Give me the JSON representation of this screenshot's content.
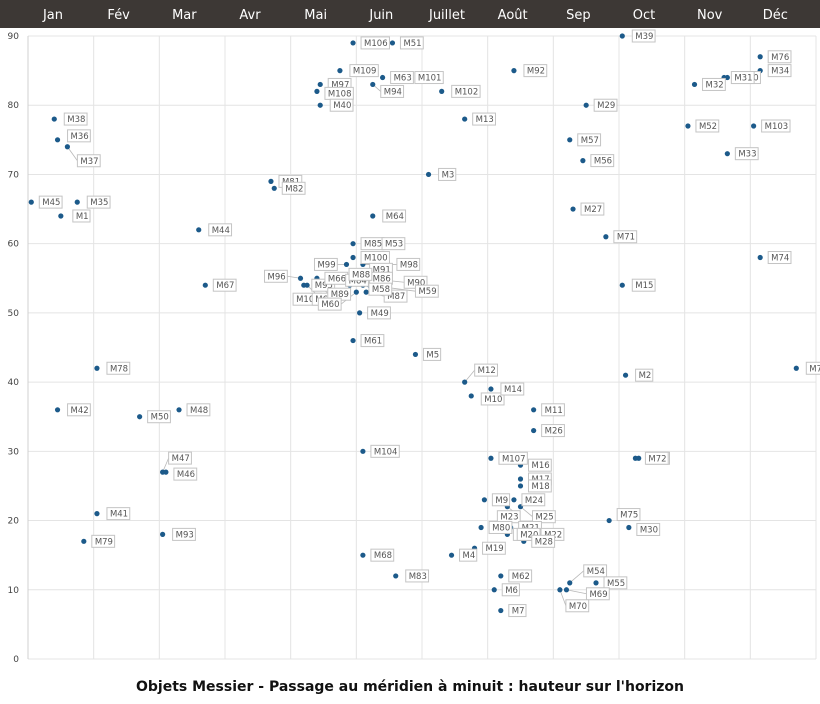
{
  "chart_data": {
    "type": "scatter",
    "title": "Objets Messier - Passage au méridien à minuit : hauteur sur l'horizon",
    "months": [
      "Jan",
      "Fév",
      "Mar",
      "Avr",
      "Mai",
      "Juin",
      "Juillet",
      "Août",
      "Sep",
      "Oct",
      "Nov",
      "Déc"
    ],
    "ylim": [
      0,
      90
    ],
    "yticks": [
      0,
      10,
      20,
      30,
      40,
      50,
      60,
      70,
      80,
      90
    ],
    "grid": true,
    "header_color": "#3d3835",
    "point_color": "#1c5a8a",
    "points": [
      {
        "name": "M1",
        "x": 0.5,
        "y": 64,
        "lx": 12,
        "ly": 0
      },
      {
        "name": "M35",
        "x": 0.75,
        "y": 66,
        "lx": 10,
        "ly": 0
      },
      {
        "name": "M45",
        "x": 0.05,
        "y": 66,
        "lx": 8,
        "ly": 0
      },
      {
        "name": "M38",
        "x": 0.4,
        "y": 78,
        "lx": 10,
        "ly": 0
      },
      {
        "name": "M36",
        "x": 0.45,
        "y": 75,
        "lx": 10,
        "ly": -4
      },
      {
        "name": "M37",
        "x": 0.6,
        "y": 74,
        "lx": 10,
        "ly": 14
      },
      {
        "name": "M42",
        "x": 0.45,
        "y": 36,
        "lx": 10,
        "ly": 0
      },
      {
        "name": "M78",
        "x": 1.05,
        "y": 42,
        "lx": 10,
        "ly": 0
      },
      {
        "name": "M79",
        "x": 0.85,
        "y": 17,
        "lx": 8,
        "ly": 0
      },
      {
        "name": "M41",
        "x": 1.05,
        "y": 21,
        "lx": 10,
        "ly": 0
      },
      {
        "name": "M50",
        "x": 1.7,
        "y": 35,
        "lx": 8,
        "ly": 0
      },
      {
        "name": "M48",
        "x": 2.3,
        "y": 36,
        "lx": 8,
        "ly": 0
      },
      {
        "name": "M47",
        "x": 2.05,
        "y": 27,
        "lx": 6,
        "ly": -14
      },
      {
        "name": "M46",
        "x": 2.1,
        "y": 27,
        "lx": 8,
        "ly": 2
      },
      {
        "name": "M93",
        "x": 2.05,
        "y": 18,
        "lx": 10,
        "ly": 0
      },
      {
        "name": "M44",
        "x": 2.6,
        "y": 62,
        "lx": 10,
        "ly": 0
      },
      {
        "name": "M67",
        "x": 2.7,
        "y": 54,
        "lx": 8,
        "ly": 0
      },
      {
        "name": "M81",
        "x": 3.7,
        "y": 69,
        "lx": 8,
        "ly": 0
      },
      {
        "name": "M82",
        "x": 3.75,
        "y": 68,
        "lx": 8,
        "ly": 0
      },
      {
        "name": "M96",
        "x": 4.15,
        "y": 55,
        "lx": -36,
        "ly": -2
      },
      {
        "name": "M95",
        "x": 4.2,
        "y": 54,
        "lx": 8,
        "ly": 0
      },
      {
        "name": "M105",
        "x": 4.25,
        "y": 54,
        "lx": -14,
        "ly": 14
      },
      {
        "name": "M66",
        "x": 4.4,
        "y": 55,
        "lx": 8,
        "ly": 0
      },
      {
        "name": "M65",
        "x": 4.42,
        "y": 54,
        "lx": -6,
        "ly": 14
      },
      {
        "name": "M99",
        "x": 4.85,
        "y": 57,
        "lx": -32,
        "ly": 0
      },
      {
        "name": "M89",
        "x": 4.9,
        "y": 54,
        "lx": -22,
        "ly": 9
      },
      {
        "name": "M60",
        "x": 5.0,
        "y": 53,
        "lx": -38,
        "ly": 12
      },
      {
        "name": "M100",
        "x": 4.95,
        "y": 58,
        "lx": 8,
        "ly": 0
      },
      {
        "name": "M91",
        "x": 5.05,
        "y": 56,
        "lx": 10,
        "ly": -2
      },
      {
        "name": "M86",
        "x": 5.05,
        "y": 55,
        "lx": 10,
        "ly": 0
      },
      {
        "name": "M84",
        "x": 5.05,
        "y": 55,
        "lx": -14,
        "ly": 2
      },
      {
        "name": "M88",
        "x": 4.95,
        "y": 56,
        "lx": -4,
        "ly": 3
      },
      {
        "name": "M98",
        "x": 5.1,
        "y": 57,
        "lx": 34,
        "ly": 0
      },
      {
        "name": "M90",
        "x": 5.15,
        "y": 55,
        "lx": 38,
        "ly": 4
      },
      {
        "name": "M87",
        "x": 5.15,
        "y": 53,
        "lx": 18,
        "ly": 4
      },
      {
        "name": "M58",
        "x": 5.1,
        "y": 54,
        "lx": 6,
        "ly": 4
      },
      {
        "name": "M59",
        "x": 5.2,
        "y": 54,
        "lx": 46,
        "ly": 6
      },
      {
        "name": "M49",
        "x": 5.05,
        "y": 50,
        "lx": 8,
        "ly": 0
      },
      {
        "name": "M61",
        "x": 4.95,
        "y": 46,
        "lx": 8,
        "ly": 0
      },
      {
        "name": "M85",
        "x": 4.95,
        "y": 60,
        "lx": 8,
        "ly": 0
      },
      {
        "name": "M53",
        "x": 5.3,
        "y": 60,
        "lx": 6,
        "ly": 0
      },
      {
        "name": "M64",
        "x": 5.25,
        "y": 64,
        "lx": 10,
        "ly": 0
      },
      {
        "name": "M104",
        "x": 5.1,
        "y": 30,
        "lx": 8,
        "ly": 0
      },
      {
        "name": "M68",
        "x": 5.1,
        "y": 15,
        "lx": 8,
        "ly": 0
      },
      {
        "name": "M83",
        "x": 5.6,
        "y": 12,
        "lx": 10,
        "ly": 0
      },
      {
        "name": "M97",
        "x": 4.45,
        "y": 83,
        "lx": 8,
        "ly": 0
      },
      {
        "name": "M108",
        "x": 4.4,
        "y": 82,
        "lx": 8,
        "ly": 2
      },
      {
        "name": "M40",
        "x": 4.45,
        "y": 80,
        "lx": 10,
        "ly": 0
      },
      {
        "name": "M109",
        "x": 4.75,
        "y": 85,
        "lx": 10,
        "ly": 0
      },
      {
        "name": "M106",
        "x": 4.95,
        "y": 89,
        "lx": 8,
        "ly": 0
      },
      {
        "name": "M51",
        "x": 5.55,
        "y": 89,
        "lx": 8,
        "ly": 0
      },
      {
        "name": "M63",
        "x": 5.4,
        "y": 84,
        "lx": 8,
        "ly": 0
      },
      {
        "name": "M101",
        "x": 5.8,
        "y": 84,
        "lx": 6,
        "ly": 0
      },
      {
        "name": "M94",
        "x": 5.25,
        "y": 83,
        "lx": 8,
        "ly": 7
      },
      {
        "name": "M102",
        "x": 6.3,
        "y": 82,
        "lx": 10,
        "ly": 0
      },
      {
        "name": "M3",
        "x": 6.1,
        "y": 70,
        "lx": 10,
        "ly": 0
      },
      {
        "name": "M13",
        "x": 6.65,
        "y": 78,
        "lx": 8,
        "ly": 0
      },
      {
        "name": "M5",
        "x": 5.9,
        "y": 44,
        "lx": 8,
        "ly": 0
      },
      {
        "name": "M12",
        "x": 6.65,
        "y": 40,
        "lx": 10,
        "ly": -12
      },
      {
        "name": "M10",
        "x": 6.75,
        "y": 38,
        "lx": 10,
        "ly": 3
      },
      {
        "name": "M14",
        "x": 7.05,
        "y": 39,
        "lx": 10,
        "ly": 0
      },
      {
        "name": "M92",
        "x": 7.4,
        "y": 85,
        "lx": 10,
        "ly": 0
      },
      {
        "name": "M107",
        "x": 7.05,
        "y": 29,
        "lx": 8,
        "ly": 0
      },
      {
        "name": "M11",
        "x": 7.7,
        "y": 36,
        "lx": 8,
        "ly": 0
      },
      {
        "name": "M26",
        "x": 7.7,
        "y": 33,
        "lx": 8,
        "ly": 0
      },
      {
        "name": "M16",
        "x": 7.5,
        "y": 28,
        "lx": 8,
        "ly": 0
      },
      {
        "name": "M17",
        "x": 7.5,
        "y": 26,
        "lx": 8,
        "ly": 0
      },
      {
        "name": "M18",
        "x": 7.5,
        "y": 25,
        "lx": 8,
        "ly": 0
      },
      {
        "name": "M9",
        "x": 6.95,
        "y": 23,
        "lx": 8,
        "ly": 0
      },
      {
        "name": "M24",
        "x": 7.4,
        "y": 23,
        "lx": 8,
        "ly": 0
      },
      {
        "name": "M23",
        "x": 7.3,
        "y": 22,
        "lx": -10,
        "ly": 10
      },
      {
        "name": "M25",
        "x": 7.5,
        "y": 22,
        "lx": 12,
        "ly": 10
      },
      {
        "name": "M80",
        "x": 6.9,
        "y": 19,
        "lx": 8,
        "ly": 0
      },
      {
        "name": "M21",
        "x": 7.35,
        "y": 19,
        "lx": 8,
        "ly": 0
      },
      {
        "name": "M8",
        "x": 7.3,
        "y": 18,
        "lx": 6,
        "ly": 0
      },
      {
        "name": "M20",
        "x": 7.45,
        "y": 18,
        "lx": 0,
        "ly": 0
      },
      {
        "name": "M22",
        "x": 7.6,
        "y": 18,
        "lx": 14,
        "ly": 0
      },
      {
        "name": "M28",
        "x": 7.55,
        "y": 17,
        "lx": 8,
        "ly": 0
      },
      {
        "name": "M19",
        "x": 6.8,
        "y": 16,
        "lx": 8,
        "ly": 0
      },
      {
        "name": "M4",
        "x": 6.45,
        "y": 15,
        "lx": 8,
        "ly": 0
      },
      {
        "name": "M62",
        "x": 7.2,
        "y": 12,
        "lx": 8,
        "ly": 0
      },
      {
        "name": "M6",
        "x": 7.1,
        "y": 10,
        "lx": 8,
        "ly": 0
      },
      {
        "name": "M7",
        "x": 7.2,
        "y": 7,
        "lx": 8,
        "ly": 0
      },
      {
        "name": "M29",
        "x": 8.5,
        "y": 80,
        "lx": 8,
        "ly": 0
      },
      {
        "name": "M57",
        "x": 8.25,
        "y": 75,
        "lx": 8,
        "ly": 0
      },
      {
        "name": "M56",
        "x": 8.45,
        "y": 72,
        "lx": 8,
        "ly": 0
      },
      {
        "name": "M27",
        "x": 8.3,
        "y": 65,
        "lx": 8,
        "ly": 0
      },
      {
        "name": "M71",
        "x": 8.8,
        "y": 61,
        "lx": 8,
        "ly": 0
      },
      {
        "name": "M15",
        "x": 9.05,
        "y": 54,
        "lx": 10,
        "ly": 0
      },
      {
        "name": "M2",
        "x": 9.1,
        "y": 41,
        "lx": 10,
        "ly": 0
      },
      {
        "name": "M73",
        "x": 9.3,
        "y": 29,
        "lx": 8,
        "ly": 0
      },
      {
        "name": "M72",
        "x": 9.25,
        "y": 29,
        "lx": 10,
        "ly": 0
      },
      {
        "name": "M75",
        "x": 8.85,
        "y": 20,
        "lx": 8,
        "ly": -6
      },
      {
        "name": "M30",
        "x": 9.15,
        "y": 19,
        "lx": 8,
        "ly": 2
      },
      {
        "name": "M54",
        "x": 8.25,
        "y": 11,
        "lx": 14,
        "ly": -12
      },
      {
        "name": "M55",
        "x": 8.65,
        "y": 11,
        "lx": 8,
        "ly": 0
      },
      {
        "name": "M69",
        "x": 8.2,
        "y": 10,
        "lx": 20,
        "ly": 4
      },
      {
        "name": "M70",
        "x": 8.1,
        "y": 10,
        "lx": 6,
        "ly": 16
      },
      {
        "name": "M39",
        "x": 9.05,
        "y": 90,
        "lx": 10,
        "ly": 0
      },
      {
        "name": "M52",
        "x": 10.05,
        "y": 77,
        "lx": 8,
        "ly": 0
      },
      {
        "name": "M32",
        "x": 10.15,
        "y": 83,
        "lx": 8,
        "ly": 0
      },
      {
        "name": "M110",
        "x": 10.6,
        "y": 84,
        "lx": 8,
        "ly": 0
      },
      {
        "name": "M31",
        "x": 10.65,
        "y": 84,
        "lx": 4,
        "ly": 0
      },
      {
        "name": "M33",
        "x": 10.65,
        "y": 73,
        "lx": 8,
        "ly": 0
      },
      {
        "name": "M76",
        "x": 11.15,
        "y": 87,
        "lx": 8,
        "ly": 0
      },
      {
        "name": "M34",
        "x": 11.15,
        "y": 85,
        "lx": 8,
        "ly": 0
      },
      {
        "name": "M103",
        "x": 11.05,
        "y": 77,
        "lx": 8,
        "ly": 0
      },
      {
        "name": "M74",
        "x": 11.15,
        "y": 58,
        "lx": 8,
        "ly": 0
      },
      {
        "name": "M77",
        "x": 11.7,
        "y": 42,
        "lx": 10,
        "ly": 0
      }
    ]
  }
}
